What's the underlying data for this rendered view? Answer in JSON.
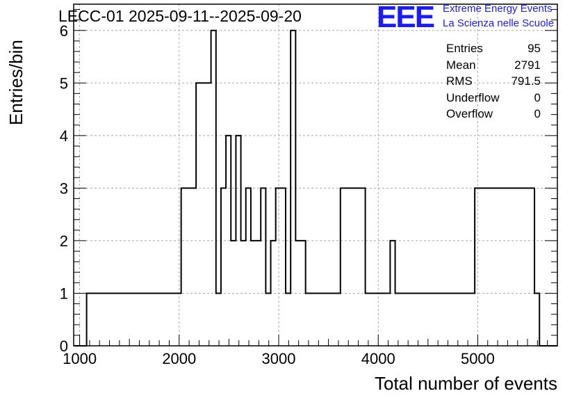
{
  "header": {
    "title": "LECC-01 2025-09-11--2025-09-20",
    "logo_text": "EEE",
    "logo_line1": "Extreme Energy Events",
    "logo_line2": "La Scienza nelle Scuole"
  },
  "stats": [
    {
      "label": "Entries",
      "value": "95"
    },
    {
      "label": "Mean",
      "value": "2791"
    },
    {
      "label": "RMS",
      "value": "791.5"
    },
    {
      "label": "Underflow",
      "value": "0"
    },
    {
      "label": "Overflow",
      "value": "0"
    }
  ],
  "chart_data": {
    "type": "histogram",
    "title": "LECC-01 2025-09-11--2025-09-20",
    "xlabel": "Total number of events",
    "ylabel": "Entries/bin",
    "xlim": [
      940,
      5800
    ],
    "ylim": [
      0,
      6.5
    ],
    "xticks": [
      1000,
      2000,
      3000,
      4000,
      5000
    ],
    "yticks": [
      0,
      1,
      2,
      3,
      4,
      5,
      6
    ],
    "grid": true,
    "bin_width": 50,
    "bin_counts": [
      {
        "x_start": 1070,
        "count": 1
      },
      {
        "x_start": 1220,
        "count": 1
      },
      {
        "x_start": 1620,
        "count": 1
      },
      {
        "x_start": 1670,
        "count": 1
      },
      {
        "x_start": 1770,
        "count": 1
      },
      {
        "x_start": 2020,
        "count": 3
      },
      {
        "x_start": 2070,
        "count": 3
      },
      {
        "x_start": 2120,
        "count": 3
      },
      {
        "x_start": 2170,
        "count": 5
      },
      {
        "x_start": 2220,
        "count": 5
      },
      {
        "x_start": 2270,
        "count": 5
      },
      {
        "x_start": 2320,
        "count": 6
      },
      {
        "x_start": 2370,
        "count": 1
      },
      {
        "x_start": 2420,
        "count": 3
      },
      {
        "x_start": 2470,
        "count": 4
      },
      {
        "x_start": 2520,
        "count": 2
      },
      {
        "x_start": 2570,
        "count": 4
      },
      {
        "x_start": 2620,
        "count": 2
      },
      {
        "x_start": 2670,
        "count": 3
      },
      {
        "x_start": 2720,
        "count": 2
      },
      {
        "x_start": 2820,
        "count": 3
      },
      {
        "x_start": 2870,
        "count": 1
      },
      {
        "x_start": 2920,
        "count": 2
      },
      {
        "x_start": 2970,
        "count": 3
      },
      {
        "x_start": 3020,
        "count": 3
      },
      {
        "x_start": 3070,
        "count": 1
      },
      {
        "x_start": 3120,
        "count": 6
      },
      {
        "x_start": 3170,
        "count": 2
      },
      {
        "x_start": 3220,
        "count": 2
      },
      {
        "x_start": 3270,
        "count": 1
      },
      {
        "x_start": 3520,
        "count": 1
      },
      {
        "x_start": 3620,
        "count": 3
      },
      {
        "x_start": 3870,
        "count": 1
      },
      {
        "x_start": 3920,
        "count": 1
      },
      {
        "x_start": 3970,
        "count": 1
      },
      {
        "x_start": 4120,
        "count": 2
      },
      {
        "x_start": 4170,
        "count": 1
      },
      {
        "x_start": 4470,
        "count": 1
      },
      {
        "x_start": 4970,
        "count": 3
      },
      {
        "x_start": 5570,
        "count": 1
      }
    ]
  }
}
